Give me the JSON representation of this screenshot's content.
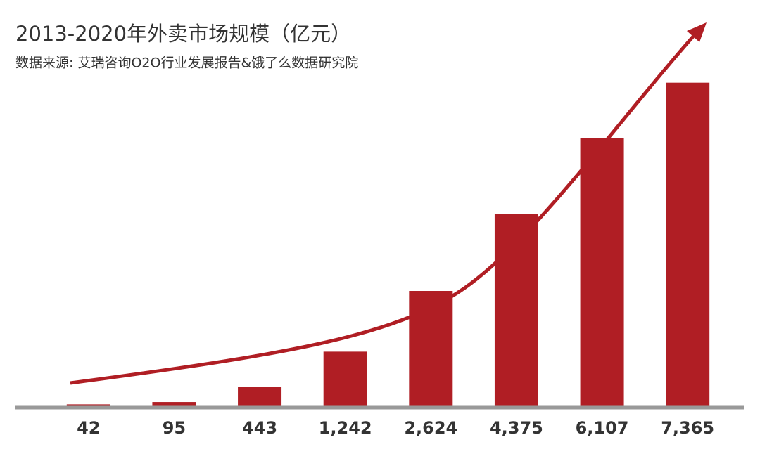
{
  "chart_data": {
    "type": "bar",
    "title": "2013-2020年外卖市场规模（亿元）",
    "subtitle": "数据来源: 艾瑞咨询O2O行业发展报告&饿了么数据研究院",
    "values": [
      42,
      95,
      443,
      1242,
      2624,
      4375,
      6107,
      7365
    ],
    "value_labels": [
      "42",
      "95",
      "443",
      "1,242",
      "2,624",
      "4,375",
      "6,107",
      "7,365"
    ],
    "color": "#b01e24",
    "ylim": [
      0,
      8000
    ]
  }
}
